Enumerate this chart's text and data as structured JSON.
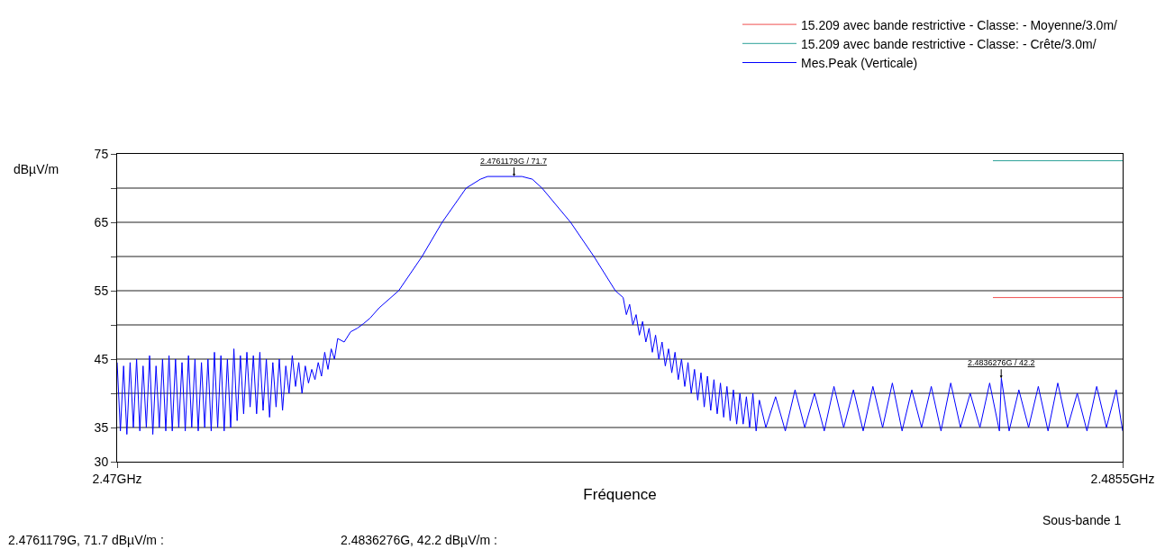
{
  "chart_data": {
    "type": "line",
    "xlabel": "Fréquence",
    "ylabel": "dBµV/m",
    "xlim": [
      2.47,
      2.4855
    ],
    "xticks": [
      {
        "value": 2.47,
        "label": "2.47GHz"
      },
      {
        "value": 2.4855,
        "label": "2.4855GHz"
      }
    ],
    "ylim": [
      30,
      75
    ],
    "yticks": [
      30,
      35,
      {
        "value": 40,
        "label": null
      },
      45,
      {
        "value": 50,
        "label": null
      },
      55,
      {
        "value": 60,
        "label": null
      },
      65,
      {
        "value": 70,
        "label": null
      },
      75
    ],
    "grid": "y",
    "legend": "top right",
    "marker": "none",
    "line_style": "solid",
    "series": [
      {
        "name": "15.209 avec bande restrictive - Classe: - Moyenne/3.0m/",
        "color": "#f05050",
        "x": [
          2.4835,
          2.4855
        ],
        "values": [
          54,
          54
        ]
      },
      {
        "name": "15.209 avec bande restrictive - Classe: - Crête/3.0m/",
        "color": "#2aa198",
        "x": [
          2.4835,
          2.4855
        ],
        "values": [
          74,
          74
        ]
      },
      {
        "name": "Mes.Peak (Verticale)",
        "color": "#0000ff",
        "x": [
          2.47,
          2.47005,
          2.4701,
          2.47015,
          2.4702,
          2.47025,
          2.4703,
          2.47035,
          2.4704,
          2.47045,
          2.4705,
          2.47055,
          2.4706,
          2.47065,
          2.4707,
          2.47075,
          2.4708,
          2.47085,
          2.4709,
          2.47095,
          2.471,
          2.47105,
          2.4711,
          2.47115,
          2.4712,
          2.47125,
          2.4713,
          2.47135,
          2.4714,
          2.47145,
          2.4715,
          2.47155,
          2.4716,
          2.47165,
          2.4717,
          2.47175,
          2.4718,
          2.47185,
          2.4719,
          2.47195,
          2.472,
          2.47205,
          2.4721,
          2.47215,
          2.4722,
          2.47225,
          2.4723,
          2.47235,
          2.4724,
          2.47245,
          2.4725,
          2.47255,
          2.4726,
          2.47265,
          2.4727,
          2.47275,
          2.4728,
          2.47285,
          2.4729,
          2.47295,
          2.473,
          2.47305,
          2.4731,
          2.47315,
          2.4732,
          2.47325,
          2.4733,
          2.47335,
          2.4734,
          2.4735,
          2.4736,
          2.4737,
          2.4738,
          2.4739,
          2.47404,
          2.47434,
          2.4747,
          2.47501,
          2.47538,
          2.4756,
          2.47571,
          2.47612,
          2.47624,
          2.4764,
          2.47655,
          2.47699,
          2.47735,
          2.47768,
          2.4778,
          2.47785,
          2.4779,
          2.47795,
          2.478,
          2.47805,
          2.4781,
          2.47815,
          2.4782,
          2.47825,
          2.4783,
          2.47835,
          2.4784,
          2.47845,
          2.4785,
          2.47855,
          2.4786,
          2.47865,
          2.4787,
          2.47875,
          2.4788,
          2.47885,
          2.4789,
          2.47895,
          2.479,
          2.47905,
          2.4791,
          2.47915,
          2.4792,
          2.47925,
          2.4793,
          2.47935,
          2.4794,
          2.47945,
          2.4795,
          2.47955,
          2.4796,
          2.47965,
          2.4797,
          2.47975,
          2.4798,
          2.47985,
          2.4799,
          2.48,
          2.48015,
          2.4803,
          2.48045,
          2.4806,
          2.48075,
          2.4809,
          2.48105,
          2.4812,
          2.48135,
          2.4815,
          2.48165,
          2.4818,
          2.48195,
          2.4821,
          2.48225,
          2.4824,
          2.48255,
          2.4827,
          2.48285,
          2.483,
          2.48315,
          2.4833,
          2.48345,
          2.4836,
          2.48363,
          2.48375,
          2.4839,
          2.48405,
          2.4842,
          2.48435,
          2.4845,
          2.48465,
          2.4848,
          2.48495,
          2.4851,
          2.48525,
          2.4854,
          2.4855
        ],
        "values": [
          44.5,
          34.5,
          44,
          34,
          44.5,
          35,
          45,
          34.5,
          44,
          35,
          45.5,
          34,
          44,
          35,
          45,
          34.5,
          45.5,
          34.5,
          45,
          35,
          44.5,
          34.5,
          45.5,
          35,
          45,
          34.5,
          44.5,
          35,
          45,
          34.5,
          46,
          35,
          45.5,
          34.5,
          45,
          35,
          46.5,
          36,
          45.5,
          37,
          46,
          38,
          45.5,
          37,
          46,
          37.5,
          45,
          36.5,
          44.5,
          38,
          45,
          37.5,
          44,
          40,
          45.5,
          41,
          44.5,
          40,
          44,
          41.5,
          43.5,
          42,
          44.5,
          42.5,
          46,
          43.5,
          46.5,
          45,
          48,
          47.5,
          49,
          49.5,
          50.2,
          51,
          52.5,
          55,
          60,
          65,
          70,
          71.3,
          71.7,
          71.7,
          71.7,
          71.3,
          70,
          65,
          60,
          55,
          54,
          51.5,
          53,
          50,
          51.5,
          48.5,
          50.5,
          47.5,
          49.5,
          46,
          48.5,
          45,
          47.5,
          44,
          46.5,
          43,
          46,
          42,
          45,
          41,
          44.5,
          40,
          43.5,
          39,
          43,
          38,
          42.5,
          37.5,
          42,
          37,
          41.5,
          36.5,
          41,
          36,
          40.5,
          35.5,
          40,
          35.5,
          39.5,
          35,
          40,
          34.5,
          39,
          35,
          39.5,
          34.5,
          40.5,
          35,
          40,
          34.5,
          41,
          35,
          40.5,
          34.5,
          41,
          35,
          41.5,
          34.5,
          40.5,
          35,
          41,
          34.5,
          41.5,
          35,
          40,
          35,
          41.5,
          34.5,
          42.2,
          34.5,
          40.5,
          35,
          41,
          34.5,
          41.5,
          35,
          40,
          34.5,
          41,
          35,
          40.5,
          34.5
        ]
      }
    ],
    "annotations": [
      {
        "text": "2.4761179G / 71.7",
        "x": 2.4761179,
        "y": 71.7
      },
      {
        "text": "2.4836276G / 42.2",
        "x": 2.4836276,
        "y": 42.2
      },
      "Sous-bande 1",
      "2.4761179G, 71.7 dBµV/m :",
      "2.4836276G, 42.2 dBµV/m :"
    ]
  }
}
